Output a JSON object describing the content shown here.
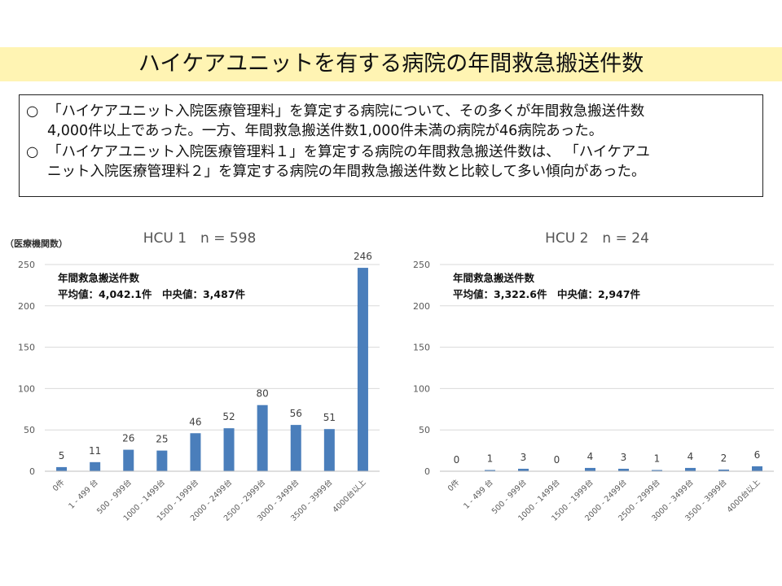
{
  "page": {
    "title": "ハイケアユニットを有する病院の年間救急搬送件数"
  },
  "summary": {
    "bullets": [
      {
        "marker": "○",
        "lines": [
          "「ハイケアユニット入院医療管理料」を算定する病院について、その多くが年間救急搬送件数",
          "4,000件以上であった。一方、年間救急搬送件数1,000件未満の病院が46病院あった。"
        ]
      },
      {
        "marker": "○",
        "lines": [
          "「ハイケアユニット入院医療管理料１」を算定する病院の年間救急搬送件数は、 「ハイケアユ",
          "ニット入院医療管理料２」を算定する病院の年間救急搬送件数と比較して多い傾向があった。"
        ]
      }
    ]
  },
  "y_unit_label": "（医療機関数）",
  "bar_color": "#4a7ebb",
  "chart_data": [
    {
      "type": "bar",
      "title": "HCU 1　n = 598",
      "annotation": [
        "年間救急搬送件数",
        "平均値：4,042.1件　中央値：3,487件"
      ],
      "categories": [
        "0件",
        "1 - 499 台",
        "500 - 999台",
        "1000 - 1499台",
        "1500 - 1999台",
        "2000 - 2499台",
        "2500 - 2999台",
        "3000 - 3499台",
        "3500 - 3999台",
        "4000台以上"
      ],
      "values": [
        5,
        11,
        26,
        25,
        46,
        52,
        80,
        56,
        51,
        246
      ],
      "ylim": [
        0,
        250
      ],
      "yticks": [
        0,
        50,
        100,
        150,
        200,
        250
      ],
      "grid": true
    },
    {
      "type": "bar",
      "title": "HCU 2　n = 24",
      "annotation": [
        "年間救急搬送件数",
        "平均値：3,322.6件　中央値：2,947件"
      ],
      "categories": [
        "0件",
        "1 - 499 台",
        "500 - 999台",
        "1000 - 1499台",
        "1500 - 1999台",
        "2000 - 2499台",
        "2500 - 2999台",
        "3000 - 3499台",
        "3500 - 3999台",
        "4000台以上"
      ],
      "values": [
        0,
        1,
        3,
        0,
        4,
        3,
        1,
        4,
        2,
        6
      ],
      "ylim": [
        0,
        250
      ],
      "yticks": [
        0,
        50,
        100,
        150,
        200,
        250
      ],
      "grid": true
    }
  ]
}
